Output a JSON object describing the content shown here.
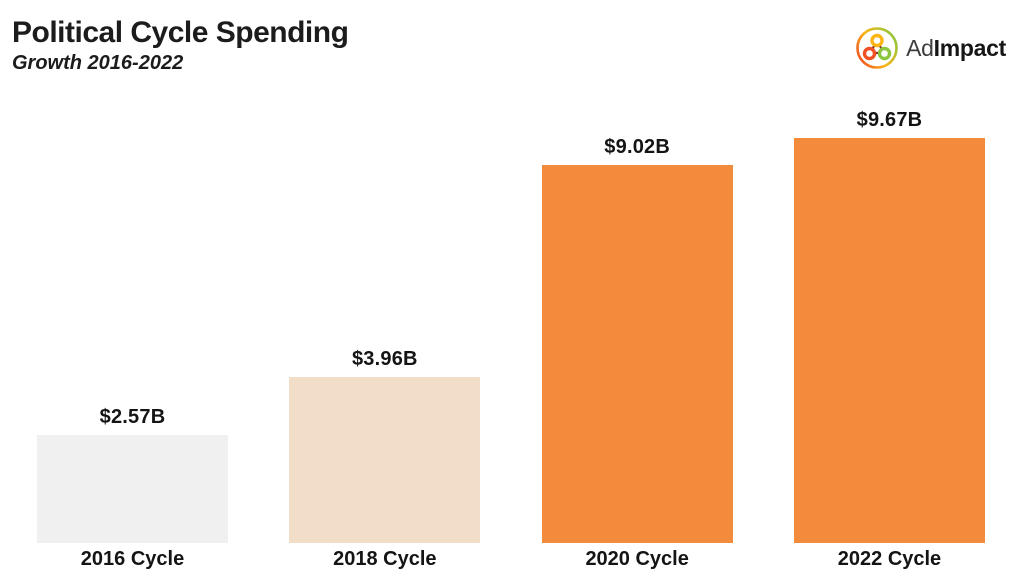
{
  "header": {
    "title": "Political Cycle Spending",
    "subtitle": "Growth 2016-2022"
  },
  "logo": {
    "text_regular": "Ad",
    "text_bold": "Impact",
    "icon_colors": {
      "yellow": "#FDB515",
      "orange_red": "#EF5123",
      "green": "#8CC63F",
      "connector_line": "#7A2B24"
    }
  },
  "chart_data": {
    "type": "bar",
    "title": "Political Cycle Spending",
    "subtitle": "Growth 2016-2022",
    "categories": [
      "2016 Cycle",
      "2018 Cycle",
      "2020 Cycle",
      "2022 Cycle"
    ],
    "values": [
      2.57,
      3.96,
      9.02,
      9.67
    ],
    "value_labels": [
      "$2.57B",
      "$3.96B",
      "$9.02B",
      "$9.67B"
    ],
    "bar_colors": [
      "#F0F0F0",
      "#F1DDC8",
      "#F28B3B",
      "#F28B3B"
    ],
    "ylim": [
      0,
      9.67
    ],
    "grid": false,
    "legend": false,
    "axes_visible": false,
    "orientation": "vertical",
    "value_label_position": "above-bar",
    "category_label_position": "below-bar"
  }
}
